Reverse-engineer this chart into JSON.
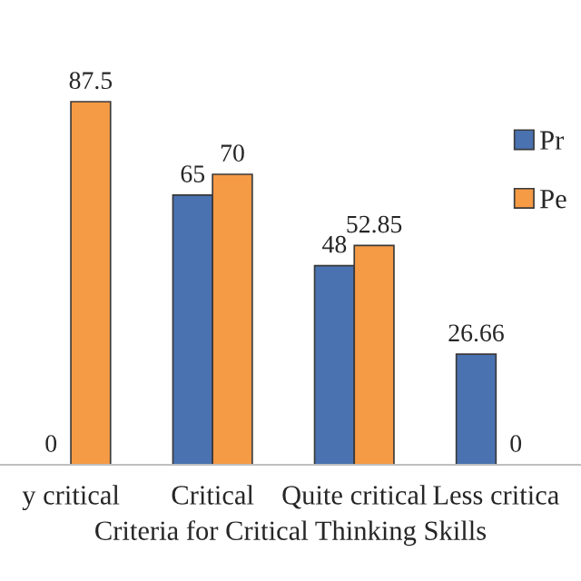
{
  "chart_data": {
    "type": "bar",
    "xlabel": "Criteria for Critical Thinking Skills",
    "categories": [
      "y critical",
      "Critical",
      "Quite critical",
      "Less critica"
    ],
    "series": [
      {
        "name": "Pr",
        "color": "#4a72b0",
        "values": [
          0,
          65,
          48,
          26.66
        ]
      },
      {
        "name": "Pe",
        "color": "#f59a45",
        "values": [
          87.5,
          70,
          52.85,
          0
        ]
      }
    ],
    "data_labels": true,
    "legend": "right",
    "tick_labels": "x",
    "grid": false
  }
}
